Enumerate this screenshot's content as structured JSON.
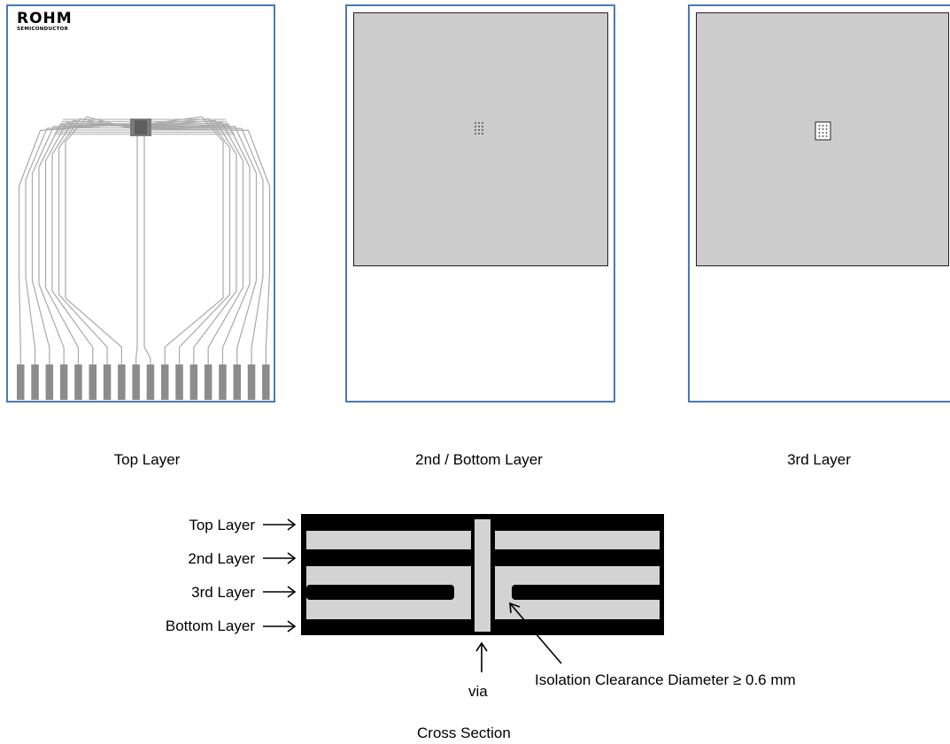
{
  "logo": {
    "brand": "ROHM",
    "tagline": "SEMICONDUCTOR"
  },
  "captions": {
    "top": "Top Layer",
    "second_bottom": "2nd / Bottom Layer",
    "third": "3rd Layer"
  },
  "cross_section": {
    "labels": [
      "Top Layer",
      "2nd Layer",
      "3rd Layer",
      "Bottom Layer"
    ],
    "via_label": "via",
    "clearance_label": "Isolation Clearance Diameter ≥ 0.6 mm",
    "title": "Cross Section"
  },
  "colors": {
    "board_border": "#4a7ab4",
    "copper_fill": "#cccccc",
    "trace": "#a9a9a9",
    "pad": "#8c8c8c",
    "layer_dark": "#000000",
    "layer_light": "#d3d3d3"
  }
}
